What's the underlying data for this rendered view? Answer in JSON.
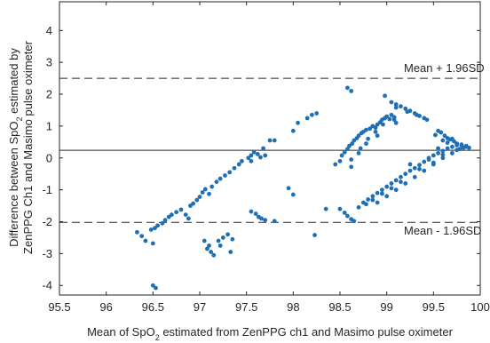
{
  "chart_data": {
    "type": "scatter",
    "xlabel_parts": {
      "pre": "Mean of SpO",
      "sub": "2",
      "post": " estimated from ZenPPG ch1 and Masimo pulse oximeter"
    },
    "ylabel_line1_parts": {
      "pre": "Difference between SpO",
      "sub": "2",
      "post": " estimated by"
    },
    "ylabel_line2": "ZenPPG Ch1 and Masimo pulse oximeter",
    "xlim": [
      95.5,
      100
    ],
    "ylim": [
      -4.3,
      4.9
    ],
    "xticks": [
      95.5,
      96,
      96.5,
      97,
      97.5,
      98,
      98.5,
      99,
      99.5,
      100
    ],
    "xtick_labels": [
      "95.5",
      "96",
      "96.5",
      "97",
      "97.5",
      "98",
      "98.5",
      "99",
      "99.5",
      "100"
    ],
    "yticks": [
      -4,
      -3,
      -2,
      -1,
      0,
      1,
      2,
      3,
      4
    ],
    "ytick_labels": [
      "-4",
      "-3",
      "-2",
      "-1",
      "0",
      "1",
      "2",
      "3",
      "4"
    ],
    "grid": false,
    "mean_line": 0.24,
    "upper_loa": 2.5,
    "lower_loa": -2.02,
    "upper_label": "Mean + 1.96SD",
    "lower_label": "Mean - 1.96SD",
    "marker_color": "#1f6fb5",
    "line_color": "#262626",
    "points": [
      [
        96.5,
        -4.0
      ],
      [
        96.53,
        -4.08
      ],
      [
        96.33,
        -2.33
      ],
      [
        96.38,
        -2.45
      ],
      [
        96.42,
        -2.6
      ],
      [
        96.5,
        -2.68
      ],
      [
        96.48,
        -2.25
      ],
      [
        96.52,
        -2.2
      ],
      [
        96.55,
        -2.12
      ],
      [
        96.6,
        -2.05
      ],
      [
        96.63,
        -1.95
      ],
      [
        96.67,
        -1.85
      ],
      [
        96.7,
        -1.78
      ],
      [
        96.75,
        -1.7
      ],
      [
        96.8,
        -1.62
      ],
      [
        96.85,
        -1.78
      ],
      [
        96.88,
        -1.9
      ],
      [
        96.9,
        -1.5
      ],
      [
        96.93,
        -1.43
      ],
      [
        96.97,
        -1.32
      ],
      [
        97.0,
        -1.22
      ],
      [
        97.03,
        -1.08
      ],
      [
        97.06,
        -0.98
      ],
      [
        97.1,
        -1.13
      ],
      [
        97.13,
        -0.9
      ],
      [
        97.18,
        -0.75
      ],
      [
        97.22,
        -0.65
      ],
      [
        97.27,
        -0.55
      ],
      [
        97.32,
        -0.45
      ],
      [
        97.37,
        -0.32
      ],
      [
        97.42,
        -0.2
      ],
      [
        97.45,
        -0.1
      ],
      [
        97.52,
        0.0
      ],
      [
        97.55,
        0.08
      ],
      [
        97.58,
        0.18
      ],
      [
        97.62,
        0.12
      ],
      [
        97.65,
        0.02
      ],
      [
        97.68,
        0.3
      ],
      [
        97.7,
        0.08
      ],
      [
        97.75,
        0.55
      ],
      [
        97.8,
        0.55
      ],
      [
        97.55,
        -0.1
      ],
      [
        97.05,
        -2.6
      ],
      [
        97.08,
        -2.85
      ],
      [
        97.12,
        -2.95
      ],
      [
        97.15,
        -3.05
      ],
      [
        97.1,
        -2.75
      ],
      [
        97.2,
        -2.6
      ],
      [
        97.25,
        -2.5
      ],
      [
        97.3,
        -2.4
      ],
      [
        97.33,
        -2.95
      ],
      [
        97.35,
        -2.55
      ],
      [
        97.22,
        -2.75
      ],
      [
        97.55,
        -1.68
      ],
      [
        97.6,
        -1.75
      ],
      [
        97.63,
        -1.85
      ],
      [
        97.66,
        -1.9
      ],
      [
        97.7,
        -1.95
      ],
      [
        97.8,
        -1.98
      ],
      [
        97.95,
        -0.95
      ],
      [
        98.0,
        -1.15
      ],
      [
        98.0,
        0.85
      ],
      [
        98.05,
        1.1
      ],
      [
        98.15,
        1.25
      ],
      [
        98.2,
        1.35
      ],
      [
        98.25,
        1.4
      ],
      [
        98.23,
        -2.42
      ],
      [
        98.35,
        -1.6
      ],
      [
        98.45,
        -0.2
      ],
      [
        98.5,
        -0.1
      ],
      [
        98.52,
        0.08
      ],
      [
        98.55,
        0.18
      ],
      [
        98.58,
        0.28
      ],
      [
        98.6,
        0.38
      ],
      [
        98.63,
        0.45
      ],
      [
        98.65,
        0.55
      ],
      [
        98.68,
        0.62
      ],
      [
        98.7,
        0.7
      ],
      [
        98.73,
        0.78
      ],
      [
        98.75,
        0.82
      ],
      [
        98.78,
        0.88
      ],
      [
        98.82,
        0.92
      ],
      [
        98.85,
        1.0
      ],
      [
        98.88,
        0.95
      ],
      [
        98.9,
        1.05
      ],
      [
        98.93,
        1.12
      ],
      [
        98.95,
        1.2
      ],
      [
        98.98,
        1.25
      ],
      [
        99.0,
        1.3
      ],
      [
        99.03,
        1.22
      ],
      [
        99.05,
        1.35
      ],
      [
        99.08,
        1.2
      ],
      [
        99.1,
        1.1
      ],
      [
        98.62,
        -0.28
      ],
      [
        98.72,
        0.3
      ],
      [
        98.8,
        0.6
      ],
      [
        98.9,
        0.7
      ],
      [
        98.58,
        2.2
      ],
      [
        98.62,
        2.1
      ],
      [
        98.98,
        1.95
      ],
      [
        99.05,
        1.75
      ],
      [
        99.1,
        1.68
      ],
      [
        99.15,
        1.62
      ],
      [
        99.2,
        1.55
      ],
      [
        99.25,
        1.48
      ],
      [
        99.3,
        1.4
      ],
      [
        99.35,
        1.32
      ],
      [
        99.4,
        1.25
      ],
      [
        99.43,
        1.2
      ],
      [
        99.1,
        1.58
      ],
      [
        99.22,
        1.45
      ],
      [
        99.32,
        1.35
      ],
      [
        98.5,
        -1.6
      ],
      [
        98.55,
        -1.72
      ],
      [
        98.58,
        -1.82
      ],
      [
        98.62,
        -1.92
      ],
      [
        98.65,
        -1.98
      ],
      [
        98.7,
        -1.55
      ],
      [
        98.75,
        -1.4
      ],
      [
        98.8,
        -1.3
      ],
      [
        98.85,
        -1.2
      ],
      [
        98.9,
        -1.1
      ],
      [
        98.95,
        -1.0
      ],
      [
        99.0,
        -0.9
      ],
      [
        99.05,
        -0.8
      ],
      [
        99.1,
        -0.7
      ],
      [
        99.15,
        -0.6
      ],
      [
        99.2,
        -0.5
      ],
      [
        99.25,
        -0.4
      ],
      [
        99.3,
        -0.32
      ],
      [
        99.35,
        -0.22
      ],
      [
        99.4,
        -0.12
      ],
      [
        99.45,
        0.0
      ],
      [
        99.5,
        0.08
      ],
      [
        99.55,
        0.15
      ],
      [
        99.6,
        0.22
      ],
      [
        99.65,
        0.3
      ],
      [
        99.7,
        0.35
      ],
      [
        99.75,
        0.4
      ],
      [
        99.8,
        0.42
      ],
      [
        99.85,
        0.38
      ],
      [
        99.88,
        0.32
      ],
      [
        98.9,
        -1.4
      ],
      [
        99.0,
        -1.2
      ],
      [
        99.1,
        -1.0
      ],
      [
        99.2,
        -0.8
      ],
      [
        99.3,
        -0.6
      ],
      [
        99.4,
        -0.4
      ],
      [
        99.5,
        -0.2
      ],
      [
        99.6,
        0.0
      ],
      [
        99.7,
        0.15
      ],
      [
        99.78,
        0.28
      ],
      [
        99.52,
        0.72
      ],
      [
        99.55,
        0.85
      ],
      [
        99.58,
        0.8
      ],
      [
        99.62,
        0.7
      ],
      [
        99.65,
        0.62
      ],
      [
        99.68,
        0.58
      ],
      [
        99.72,
        0.52
      ],
      [
        99.75,
        0.45
      ],
      [
        99.8,
        0.4
      ],
      [
        99.85,
        0.35
      ],
      [
        99.6,
        0.55
      ],
      [
        99.65,
        0.48
      ],
      [
        98.62,
        -0.05
      ],
      [
        98.7,
        0.15
      ],
      [
        98.78,
        0.45
      ],
      [
        98.88,
        0.82
      ],
      [
        98.96,
        1.05
      ],
      [
        99.08,
        1.28
      ],
      [
        99.25,
        -0.2
      ],
      [
        99.45,
        -0.05
      ],
      [
        99.55,
        0.3
      ],
      [
        99.7,
        0.6
      ],
      [
        99.5,
        -0.15
      ],
      [
        99.35,
        -0.35
      ],
      [
        99.15,
        -0.75
      ],
      [
        99.05,
        -0.95
      ],
      [
        98.95,
        -1.12
      ],
      [
        98.85,
        -1.32
      ],
      [
        98.78,
        -1.45
      ],
      [
        99.6,
        0.1
      ],
      [
        99.75,
        0.25
      ],
      [
        99.82,
        0.32
      ]
    ]
  }
}
